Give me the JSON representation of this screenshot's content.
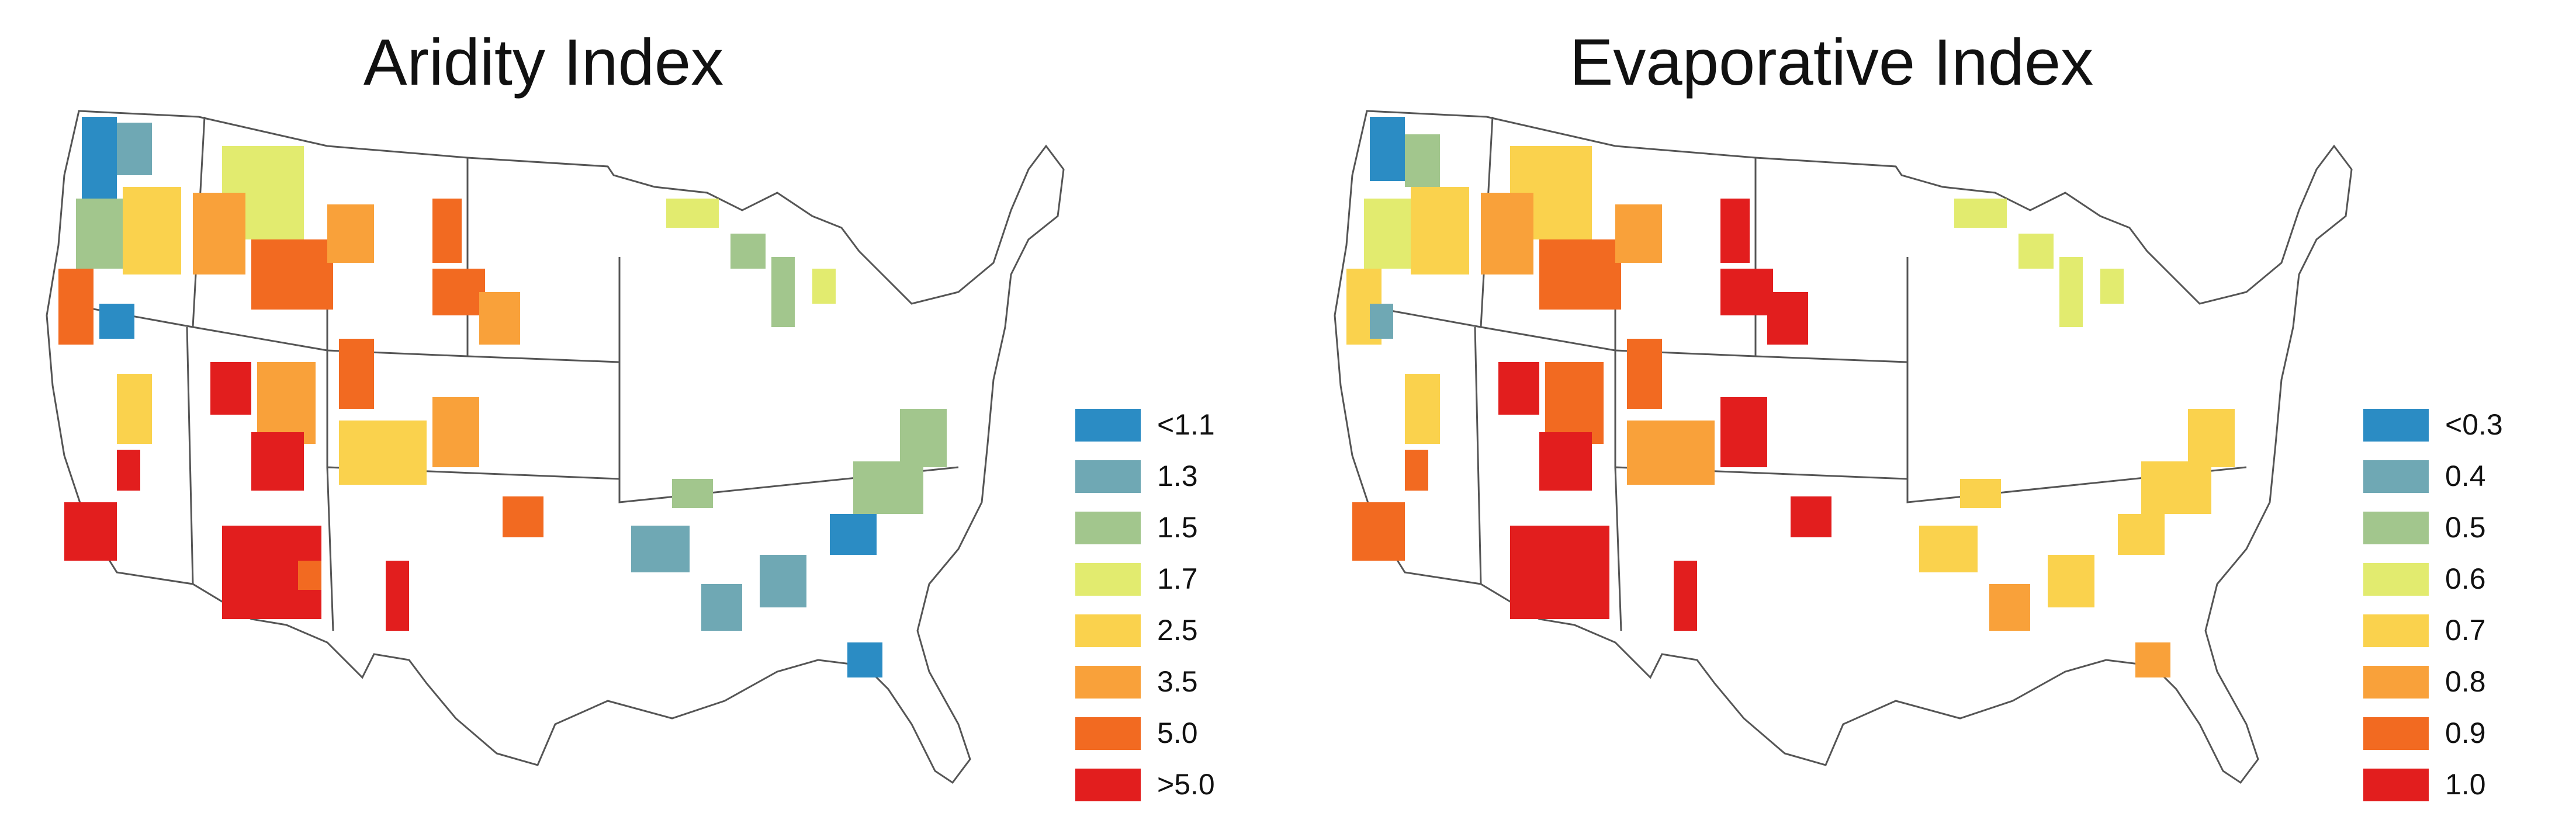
{
  "maps": [
    {
      "title": "Aridity Index",
      "legend": [
        {
          "label": "<1.1",
          "color": "#2b8cc4"
        },
        {
          "label": "1.3",
          "color": "#6fa8b4"
        },
        {
          "label": "1.5",
          "color": "#a2c68d"
        },
        {
          "label": "1.7",
          "color": "#e2eb6f"
        },
        {
          "label": "2.5",
          "color": "#fad24d"
        },
        {
          "label": "3.5",
          "color": "#f9a13a"
        },
        {
          "label": "5.0",
          "color": "#f26a21"
        },
        {
          "label": ">5.0",
          "color": "#e21e1e"
        }
      ]
    },
    {
      "title": "Evaporative Index",
      "legend": [
        {
          "label": "<0.3",
          "color": "#2b8cc4"
        },
        {
          "label": "0.4",
          "color": "#6fa8b4"
        },
        {
          "label": "0.5",
          "color": "#a2c68d"
        },
        {
          "label": "0.6",
          "color": "#e2eb6f"
        },
        {
          "label": "0.7",
          "color": "#fad24d"
        },
        {
          "label": "0.8",
          "color": "#f9a13a"
        },
        {
          "label": "0.9",
          "color": "#f26a21"
        },
        {
          "label": "1.0",
          "color": "#e21e1e"
        }
      ]
    }
  ]
}
